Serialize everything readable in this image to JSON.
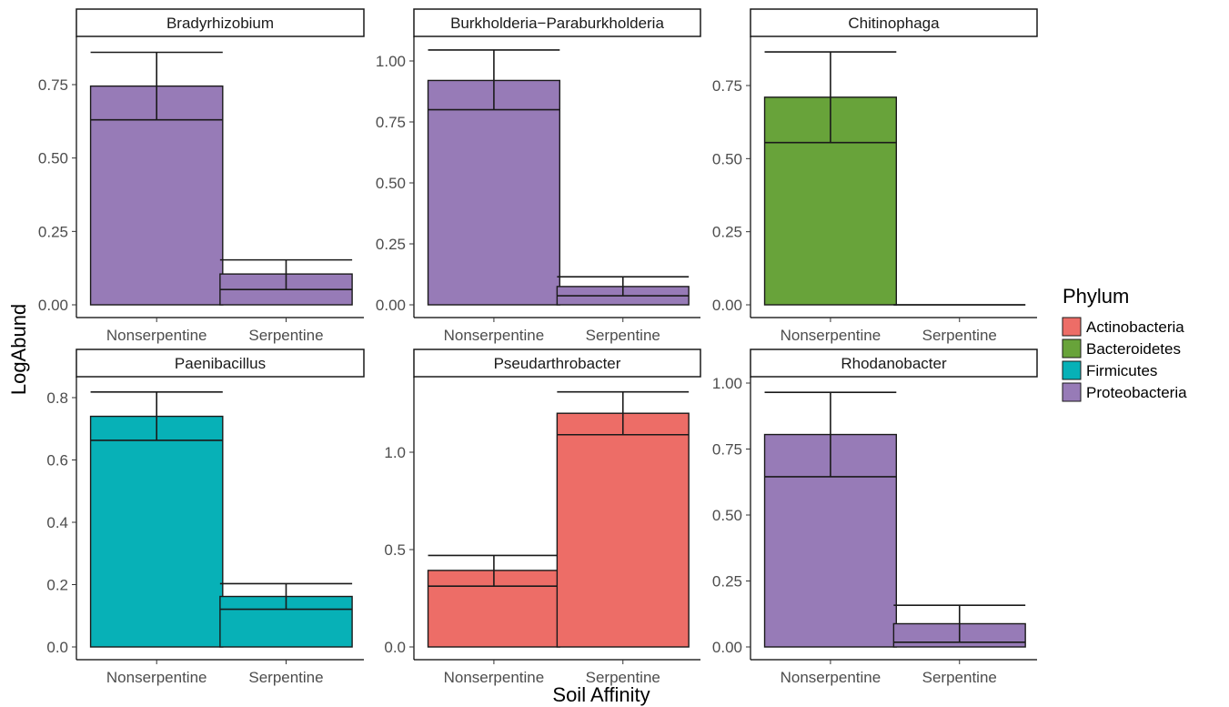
{
  "xlabel": "Soil Affinity",
  "ylabel": "LogAbund",
  "legend": {
    "title": "Phylum",
    "placement": "right",
    "items": [
      {
        "name": "Actinobacteria",
        "color": "#ED6D67"
      },
      {
        "name": "Bacteroidetes",
        "color": "#68A33A"
      },
      {
        "name": "Firmicutes",
        "color": "#07B1B7"
      },
      {
        "name": "Proteobacteria",
        "color": "#977BB7"
      }
    ]
  },
  "chart_data": [
    {
      "type": "bar",
      "title": "Bradyrhizobium",
      "phylum": "Proteobacteria",
      "categories": [
        "Nonserpentine",
        "Serpentine"
      ],
      "values": [
        0.745,
        0.105
      ],
      "medians": [
        0.63,
        0.052
      ],
      "error_upper": [
        0.86,
        0.153
      ],
      "ylim": [
        0,
        0.9
      ],
      "yticks": [
        "0.00",
        "0.25",
        "0.50",
        "0.75"
      ],
      "ytick_values": [
        0,
        0.25,
        0.5,
        0.75
      ],
      "grid": false
    },
    {
      "type": "bar",
      "title": "Burkholderia−Paraburkholderia",
      "phylum": "Proteobacteria",
      "categories": [
        "Nonserpentine",
        "Serpentine"
      ],
      "values": [
        0.92,
        0.075
      ],
      "medians": [
        0.8,
        0.037
      ],
      "error_upper": [
        1.045,
        0.115
      ],
      "ylim": [
        0,
        1.1
      ],
      "yticks": [
        "0.00",
        "0.25",
        "0.50",
        "0.75",
        "1.00"
      ],
      "ytick_values": [
        0,
        0.25,
        0.5,
        0.75,
        1.0
      ],
      "grid": false
    },
    {
      "type": "bar",
      "title": "Chitinophaga",
      "phylum": "Bacteroidetes",
      "categories": [
        "Nonserpentine",
        "Serpentine"
      ],
      "values": [
        0.71,
        0.0
      ],
      "medians": [
        0.555,
        0.0
      ],
      "error_upper": [
        0.865,
        0.0
      ],
      "ylim": [
        0,
        0.9
      ],
      "yticks": [
        "0.00",
        "0.25",
        "0.50",
        "0.75"
      ],
      "ytick_values": [
        0,
        0.25,
        0.5,
        0.75
      ],
      "grid": false
    },
    {
      "type": "bar",
      "title": "Paenibacillus",
      "phylum": "Firmicutes",
      "categories": [
        "Nonserpentine",
        "Serpentine"
      ],
      "values": [
        0.74,
        0.162
      ],
      "medians": [
        0.663,
        0.121
      ],
      "error_upper": [
        0.818,
        0.203
      ],
      "ylim": [
        0,
        0.86
      ],
      "yticks": [
        "0.0",
        "0.2",
        "0.4",
        "0.6",
        "0.8"
      ],
      "ytick_values": [
        0,
        0.2,
        0.4,
        0.6,
        0.8
      ],
      "grid": false
    },
    {
      "type": "bar",
      "title": "Pseudarthrobacter",
      "phylum": "Actinobacteria",
      "categories": [
        "Nonserpentine",
        "Serpentine"
      ],
      "values": [
        0.393,
        1.2
      ],
      "medians": [
        0.312,
        1.09
      ],
      "error_upper": [
        0.47,
        1.31
      ],
      "ylim": [
        0,
        1.38
      ],
      "yticks": [
        "0.0",
        "0.5",
        "1.0"
      ],
      "ytick_values": [
        0,
        0.5,
        1.0
      ],
      "grid": false
    },
    {
      "type": "bar",
      "title": "Rhodanobacter",
      "phylum": "Proteobacteria",
      "categories": [
        "Nonserpentine",
        "Serpentine"
      ],
      "values": [
        0.805,
        0.088
      ],
      "medians": [
        0.645,
        0.018
      ],
      "error_upper": [
        0.965,
        0.158
      ],
      "ylim": [
        0,
        1.03
      ],
      "yticks": [
        "0.00",
        "0.25",
        "0.50",
        "0.75",
        "1.00"
      ],
      "ytick_values": [
        0,
        0.25,
        0.5,
        0.75,
        1.0
      ],
      "grid": false
    }
  ]
}
